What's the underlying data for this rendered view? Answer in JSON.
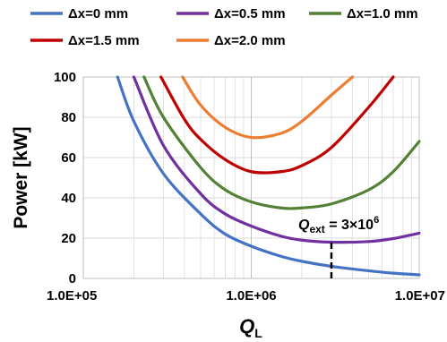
{
  "chart_data": {
    "type": "line",
    "title": "",
    "xlabel": "Q",
    "xlabel_sub": "L",
    "ylabel": "Power [kW]",
    "x_scale": "log",
    "xlim": [
      100000,
      10000000
    ],
    "ylim": [
      0,
      100
    ],
    "x_ticks": [
      100000,
      1000000,
      10000000
    ],
    "x_tick_labels": [
      "1.0E+05",
      "1.0E+06",
      "1.0E+07"
    ],
    "y_ticks": [
      0,
      20,
      40,
      60,
      80,
      100
    ],
    "y_tick_labels": [
      "0",
      "20",
      "40",
      "60",
      "80",
      "100"
    ],
    "grid": true,
    "legend_position": "top",
    "series": [
      {
        "name": "Δx=0 mm",
        "color": "#4472C4",
        "x": [
          160000,
          200000,
          300000,
          500000,
          700000,
          1000000,
          1500000,
          2000000,
          3000000,
          5000000,
          7000000,
          10000000
        ],
        "y": [
          100,
          78,
          52,
          32,
          22,
          16,
          11,
          8.5,
          6,
          3.8,
          2.6,
          1.8
        ]
      },
      {
        "name": "Δx=0.5 mm",
        "color": "#7030A0",
        "x": [
          200000,
          300000,
          500000,
          700000,
          1000000,
          1500000,
          2000000,
          3000000,
          5000000,
          7000000,
          10000000
        ],
        "y": [
          100,
          66,
          42,
          32,
          26,
          21,
          19,
          18,
          18.3,
          19.8,
          22.5
        ]
      },
      {
        "name": "Δx=1.0 mm",
        "color": "#538135",
        "x": [
          230000,
          300000,
          500000,
          700000,
          1000000,
          1500000,
          2000000,
          3000000,
          5000000,
          7000000,
          10000000
        ],
        "y": [
          100,
          80,
          55,
          44,
          38,
          35,
          35,
          37,
          44,
          53,
          68
        ]
      },
      {
        "name": "Δx=1.5 mm",
        "color": "#C00000",
        "x": [
          290000,
          400000,
          500000,
          700000,
          1000000,
          1500000,
          2000000,
          3000000,
          5000000,
          7000000
        ],
        "y": [
          100,
          79,
          69,
          59,
          53,
          53,
          56,
          65,
          85,
          100
        ]
      },
      {
        "name": "Δx=2.0 mm",
        "color": "#ED7D31",
        "x": [
          390000,
          500000,
          700000,
          1000000,
          1500000,
          2000000,
          3000000,
          4000000
        ],
        "y": [
          100,
          86,
          75,
          70,
          72,
          78,
          91,
          100
        ]
      }
    ],
    "annotation": {
      "symbol": "Q",
      "subscript": "ext",
      "text": " = 3×10",
      "exponent": "6",
      "x": 3000000,
      "y_from": 0,
      "y_to": 18
    }
  }
}
